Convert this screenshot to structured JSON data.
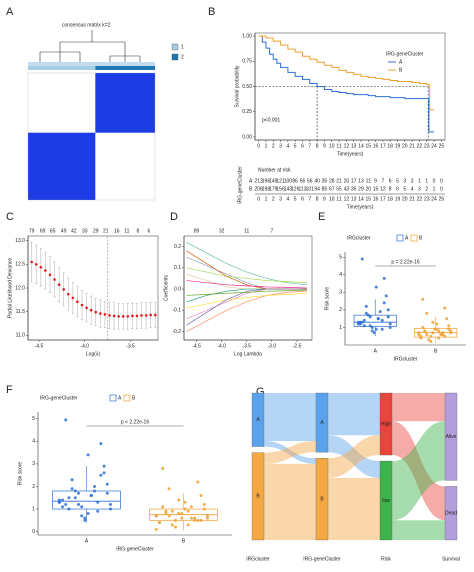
{
  "chart_data": [
    {
      "type": "heatmap",
      "letter": "A",
      "title": "consensus matrix k=2",
      "color": "#1e3ce6",
      "series": [
        {
          "name": "1",
          "color": "#a6cee3",
          "size": 0.53
        },
        {
          "name": "2",
          "color": "#1f78b4",
          "size": 0.47
        }
      ],
      "values": [
        [
          0,
          1
        ],
        [
          1,
          0
        ]
      ]
    },
    {
      "type": "step",
      "letter": "B",
      "xlabel": "Time(years)",
      "ylabel": "Survival probability",
      "legend_title": "IRG-geneCluster",
      "annotation": "p<0.001",
      "xlim": [
        -0.5,
        25.5
      ],
      "ylim": [
        -0.03,
        1.03
      ],
      "xticks": [
        0,
        1,
        2,
        3,
        4,
        5,
        6,
        7,
        8,
        9,
        10,
        11,
        12,
        13,
        14,
        15,
        16,
        17,
        18,
        19,
        20,
        21,
        22,
        23,
        24,
        25
      ],
      "yticks": [
        {
          "value": 0,
          "label": "0.00"
        },
        {
          "value": 0.25,
          "label": "0.25"
        },
        {
          "value": 0.5,
          "label": "0.50"
        },
        {
          "value": 0.75,
          "label": "0.75"
        },
        {
          "value": 1,
          "label": "1.00"
        }
      ],
      "median_y": 0.5,
      "median_x": [
        8,
        23.2
      ],
      "series": [
        {
          "name": "A",
          "color": "#2b6fd6",
          "x": [
            0,
            0.5,
            1,
            1.5,
            2,
            2.5,
            3,
            4,
            5,
            6,
            7,
            8,
            9,
            10,
            11,
            12,
            13,
            14,
            15,
            16,
            17,
            18,
            19,
            20,
            21,
            22,
            23,
            23.3,
            24
          ],
          "values": [
            1,
            0.94,
            0.88,
            0.82,
            0.77,
            0.73,
            0.69,
            0.64,
            0.6,
            0.57,
            0.53,
            0.5,
            0.47,
            0.45,
            0.44,
            0.43,
            0.42,
            0.42,
            0.41,
            0.4,
            0.4,
            0.39,
            0.39,
            0.38,
            0.38,
            0.38,
            0.38,
            0.05,
            0.05
          ]
        },
        {
          "name": "B",
          "color": "#f0a030",
          "x": [
            0,
            1,
            2,
            3,
            4,
            5,
            6,
            7,
            8,
            9,
            10,
            11,
            12,
            13,
            14,
            15,
            16,
            17,
            18,
            19,
            20,
            21,
            22,
            23,
            23.4,
            24
          ],
          "values": [
            1,
            0.98,
            0.95,
            0.91,
            0.87,
            0.84,
            0.8,
            0.77,
            0.74,
            0.71,
            0.69,
            0.66,
            0.64,
            0.62,
            0.6,
            0.59,
            0.58,
            0.57,
            0.56,
            0.55,
            0.55,
            0.54,
            0.53,
            0.52,
            0.27,
            0.27
          ]
        }
      ],
      "risk_table": {
        "title": "Number at risk",
        "ylabel": "IRG-geneCluster",
        "xlabel": "Time(years)",
        "rows": [
          {
            "name": "A",
            "values": [
              "213",
              "196",
              "149",
              "121",
              "100",
              "86",
              "66",
              "56",
              "40",
              "35",
              "28",
              "21",
              "20",
              "17",
              "13",
              "11",
              "9",
              "7",
              "6",
              "5",
              "3",
              "3",
              "1",
              "1",
              "0",
              "0"
            ]
          },
          {
            "name": "B",
            "values": [
              "208",
              "198",
              "179",
              "156",
              "143",
              "126",
              "113",
              "101",
              "94",
              "85",
              "67",
              "55",
              "43",
              "35",
              "29",
              "20",
              "15",
              "12",
              "8",
              "6",
              "5",
              "4",
              "3",
              "2",
              "1",
              "0"
            ]
          }
        ]
      }
    },
    {
      "type": "scatter",
      "letter": "C",
      "xlabel": "Log(λ)",
      "ylabel": "Partial Likelihood Deviance",
      "color": "#e41a1c",
      "xlim": [
        -4.62,
        -3.2
      ],
      "ylim": [
        10.9,
        13.1
      ],
      "xticks": [
        -4.5,
        {
          "value": -4,
          "label": "-4.0"
        },
        -3.5
      ],
      "yticks": [
        {
          "value": 11,
          "label": "11.0"
        },
        11.5,
        {
          "value": 12,
          "label": "12.0"
        },
        12.5,
        {
          "value": 13,
          "label": "13.0"
        }
      ],
      "vlines": [
        -3.75
      ],
      "top_ticks": [
        {
          "value": -4.58,
          "label": "79"
        },
        {
          "value": -4.46,
          "label": "69"
        },
        {
          "value": -4.35,
          "label": "65"
        },
        {
          "value": -4.23,
          "label": "49"
        },
        {
          "value": -4.12,
          "label": "42"
        },
        {
          "value": -4.0,
          "label": "33"
        },
        {
          "value": -3.88,
          "label": "29"
        },
        {
          "value": -3.77,
          "label": "21"
        },
        {
          "value": -3.65,
          "label": "16"
        },
        {
          "value": -3.54,
          "label": "11"
        },
        {
          "value": -3.42,
          "label": "8"
        },
        {
          "value": -3.3,
          "label": "6"
        }
      ],
      "x": [
        -4.58,
        -4.53,
        -4.48,
        -4.43,
        -4.38,
        -4.33,
        -4.28,
        -4.23,
        -4.18,
        -4.13,
        -4.08,
        -4.03,
        -3.98,
        -3.93,
        -3.88,
        -3.83,
        -3.78,
        -3.73,
        -3.68,
        -3.63,
        -3.58,
        -3.53,
        -3.48,
        -3.43,
        -3.38,
        -3.33,
        -3.28,
        -3.23
      ],
      "values": [
        12.55,
        12.5,
        12.44,
        12.37,
        12.28,
        12.18,
        12.07,
        11.97,
        11.87,
        11.79,
        11.71,
        11.64,
        11.58,
        11.53,
        11.49,
        11.46,
        11.44,
        11.42,
        11.41,
        11.4,
        11.4,
        11.4,
        11.41,
        11.41,
        11.42,
        11.42,
        11.43,
        11.43
      ],
      "errors": [
        0.42,
        0.41,
        0.4,
        0.39,
        0.38,
        0.37,
        0.36,
        0.35,
        0.34,
        0.33,
        0.32,
        0.31,
        0.3,
        0.3,
        0.29,
        0.29,
        0.28,
        0.28,
        0.28,
        0.27,
        0.27,
        0.27,
        0.27,
        0.27,
        0.27,
        0.27,
        0.27,
        0.27
      ]
    },
    {
      "type": "line",
      "letter": "D",
      "xlabel": "Log Lambda",
      "ylabel": "Coefficients",
      "xlim": [
        -4.75,
        -2.2
      ],
      "ylim": [
        -0.24,
        0.25
      ],
      "xticks": [
        -4.5,
        {
          "value": -4,
          "label": "-4.0"
        },
        -3.5,
        {
          "value": -3,
          "label": "-3.0"
        },
        -2.5
      ],
      "yticks": [
        -0.2,
        -0.1,
        {
          "value": 0,
          "label": "0.0"
        },
        0.1,
        0.2
      ],
      "top_ticks": [
        {
          "value": -4.5,
          "label": "89"
        },
        {
          "value": -4.0,
          "label": "32"
        },
        {
          "value": -3.5,
          "label": "11"
        },
        {
          "value": -3.0,
          "label": "7"
        }
      ],
      "x": [
        -4.7,
        -4.3,
        -3.9,
        -3.5,
        -3.1,
        -2.7,
        -2.3
      ],
      "series": [
        {
          "color": "#66c2a5",
          "values": [
            0.22,
            0.17,
            0.12,
            0.08,
            0.05,
            0.03,
            0.02
          ]
        },
        {
          "color": "#fc8d62",
          "values": [
            -0.2,
            -0.15,
            -0.1,
            -0.06,
            -0.03,
            -0.015,
            -0.01
          ]
        },
        {
          "color": "#8da0cb",
          "values": [
            0.15,
            0.11,
            0.07,
            0.03,
            0,
            0,
            0
          ]
        },
        {
          "color": "#e78ac3",
          "values": [
            -0.14,
            -0.1,
            -0.06,
            -0.02,
            0,
            0,
            0
          ]
        },
        {
          "color": "#a6d854",
          "values": [
            0.1,
            0.08,
            0.06,
            0.05,
            0.04,
            0.035,
            0.03
          ]
        },
        {
          "color": "#ffd92f",
          "values": [
            -0.09,
            -0.07,
            -0.05,
            -0.04,
            -0.03,
            -0.025,
            -0.02
          ]
        },
        {
          "color": "#e5c494",
          "values": [
            0.07,
            0.04,
            0.01,
            0,
            0,
            0,
            0
          ]
        },
        {
          "color": "#1b9e77",
          "values": [
            -0.06,
            -0.03,
            -0.01,
            0,
            0,
            0,
            0
          ]
        },
        {
          "color": "#d95f02",
          "values": [
            0.18,
            0.12,
            0.06,
            0.02,
            0,
            0,
            0
          ]
        },
        {
          "color": "#7570b3",
          "values": [
            -0.17,
            -0.11,
            -0.05,
            -0.01,
            0,
            0,
            0
          ]
        },
        {
          "color": "#e7298a",
          "values": [
            0.04,
            0.03,
            0.02,
            0.015,
            0.01,
            0.008,
            0.005
          ]
        },
        {
          "color": "#66a61e",
          "values": [
            -0.03,
            -0.025,
            -0.02,
            -0.015,
            -0.01,
            -0.008,
            -0.005
          ]
        }
      ]
    },
    {
      "type": "box",
      "letter": "E",
      "legend_title": "IRGcluster",
      "xlabel": "IRGcluster",
      "ylabel": "Risk score",
      "annotation": "p = 2.22e-16",
      "ylim": [
        0,
        5.3
      ],
      "yticks": [
        1,
        2,
        3,
        4,
        5
      ],
      "categories": [
        "A",
        "B"
      ],
      "series": [
        {
          "name": "A",
          "color": "#2b6fd6",
          "box": [
            0.5,
            1.05,
            1.3,
            1.7,
            2.6
          ],
          "values": [
            1.3,
            1.1,
            1.6,
            0.9,
            1.4,
            2.0,
            1.2,
            1.8,
            0.8,
            1.5,
            2.4,
            1.0,
            1.3,
            1.7,
            0.7,
            1.9,
            2.8,
            1.2,
            1.4,
            1.1,
            3.3,
            0.9,
            1.6,
            1.3,
            2.2,
            1.0,
            1.5,
            3.8,
            1.2,
            4.9
          ]
        },
        {
          "name": "B",
          "color": "#f0a030",
          "box": [
            0.1,
            0.45,
            0.7,
            0.95,
            1.6
          ],
          "values": [
            0.6,
            0.8,
            0.5,
            0.9,
            0.7,
            1.1,
            0.4,
            0.6,
            1.3,
            0.8,
            0.5,
            0.7,
            1.0,
            0.3,
            0.9,
            0.6,
            1.5,
            0.7,
            0.8,
            0.2,
            1.2,
            0.6,
            0.9,
            0.5,
            1.8,
            0.7,
            0.4,
            2.1,
            0.8,
            2.6
          ]
        }
      ]
    },
    {
      "type": "box",
      "letter": "F",
      "legend_title": "IRG-geneCluster",
      "xlabel": "IRG-geneCluster",
      "ylabel": "Risk score",
      "annotation": "p < 2.22e-16",
      "ylim": [
        -0.15,
        5.3
      ],
      "yticks": [
        0,
        1,
        2,
        3,
        4,
        5
      ],
      "categories": [
        "A",
        "B"
      ],
      "series": [
        {
          "name": "A",
          "color": "#2b6fd6",
          "box": [
            0.4,
            1.0,
            1.35,
            1.8,
            2.9
          ],
          "values": [
            1.4,
            1.0,
            1.7,
            0.8,
            1.3,
            2.1,
            1.1,
            1.9,
            0.7,
            1.6,
            2.5,
            1.0,
            1.2,
            1.8,
            0.6,
            2.0,
            2.9,
            1.3,
            1.5,
            1.2,
            3.4,
            0.9,
            1.7,
            1.4,
            2.3,
            1.1,
            1.6,
            3.9,
            1.2,
            4.95,
            1.5,
            0.5,
            1.8,
            2.6,
            1.3
          ]
        },
        {
          "name": "B",
          "color": "#f0a030",
          "box": [
            0.05,
            0.5,
            0.75,
            1.0,
            1.7
          ],
          "values": [
            0.7,
            0.8,
            0.5,
            1.0,
            0.6,
            1.2,
            0.4,
            0.7,
            1.4,
            0.9,
            0.5,
            0.6,
            1.1,
            0.3,
            0.8,
            0.6,
            1.6,
            0.7,
            0.9,
            0.2,
            1.3,
            0.5,
            1.0,
            0.4,
            1.9,
            0.8,
            0.3,
            2.2,
            0.7,
            2.8,
            0.9,
            0.6,
            1.1,
            0.5,
            0.1
          ]
        }
      ]
    },
    {
      "type": "sankey",
      "letter": "G",
      "stages": [
        "IRGcluster",
        "IRG-geneCluster",
        "Risk",
        "Survival"
      ],
      "nodes": [
        [
          {
            "label": "A",
            "color": "#5aa2ec"
          },
          {
            "label": "B",
            "color": "#f5a742"
          }
        ],
        [
          {
            "label": "A",
            "color": "#5aa2ec"
          },
          {
            "label": "B",
            "color": "#f5a742"
          }
        ],
        [
          {
            "label": "High",
            "color": "#e8453c"
          },
          {
            "label": "low",
            "color": "#3cb44b"
          }
        ],
        [
          {
            "label": "Alive",
            "color": "#b39ddb"
          },
          {
            "label": "Dead",
            "color": "#b39ddb"
          }
        ]
      ],
      "flows": [
        [
          [
            170,
            20
          ],
          [
            40,
            270
          ]
        ],
        [
          [
            150,
            60
          ],
          [
            70,
            220
          ]
        ],
        [
          [
            100,
            120
          ],
          [
            210,
            70
          ]
        ]
      ]
    }
  ]
}
